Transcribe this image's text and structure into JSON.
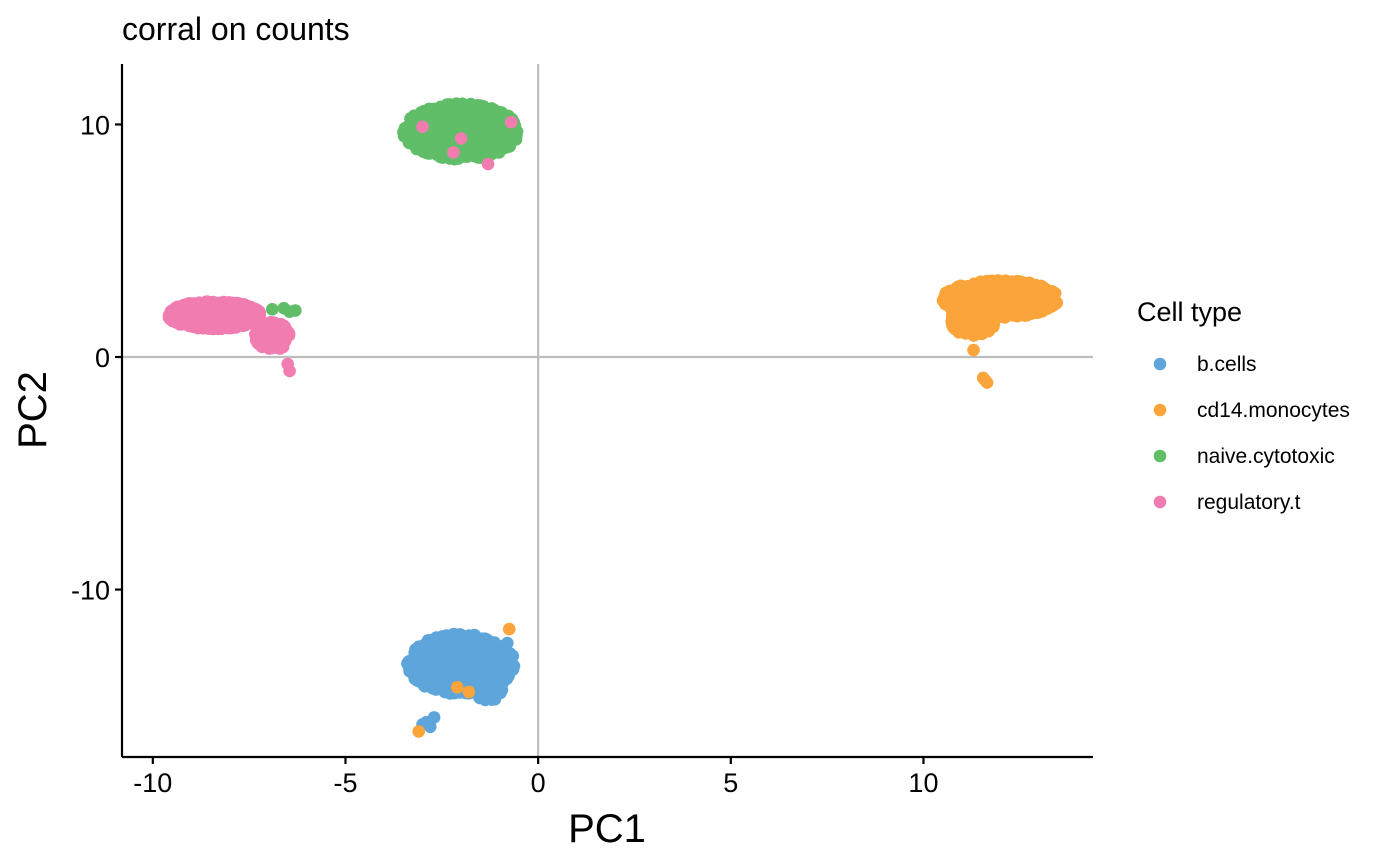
{
  "chart_data": {
    "type": "scatter",
    "title": "corral on counts",
    "xlabel": "PC1",
    "ylabel": "PC2",
    "xlim": [
      -10.8,
      14.4
    ],
    "ylim": [
      -17.2,
      12.6
    ],
    "x_ticks": [
      -10,
      -5,
      0,
      5,
      10
    ],
    "y_ticks": [
      -10,
      0,
      10
    ],
    "x_tick_labels": [
      "-10",
      "-5",
      "0",
      "5",
      "10"
    ],
    "y_tick_labels": [
      "-10",
      "0",
      "10"
    ],
    "reference_lines": {
      "x": 0,
      "y": 0
    },
    "grid": false,
    "legend": {
      "title": "Cell type",
      "placement": "right",
      "entries": [
        "b.cells",
        "cd14.monocytes",
        "naive.cytotoxic",
        "regulatory.t"
      ]
    },
    "series": [
      {
        "name": "b.cells",
        "color": "#5DA5DA",
        "clusters": [
          {
            "cx": -2.0,
            "cy": -13.2,
            "rx": 1.4,
            "ry": 1.3,
            "n": 700
          },
          {
            "cx": -1.3,
            "cy": -14.3,
            "rx": 0.4,
            "ry": 0.5,
            "n": 60
          }
        ],
        "points": [
          [
            -2.9,
            -15.7
          ],
          [
            -2.7,
            -15.5
          ],
          [
            -2.8,
            -15.9
          ],
          [
            -3.0,
            -15.8
          ],
          [
            -0.7,
            -13.3
          ],
          [
            -0.8,
            -12.3
          ]
        ]
      },
      {
        "name": "cd14.monocytes",
        "color": "#FAA43A",
        "clusters": [
          {
            "cx": 12.0,
            "cy": 2.5,
            "rx": 1.5,
            "ry": 0.8,
            "n": 650
          },
          {
            "cx": 11.3,
            "cy": 1.6,
            "rx": 0.6,
            "ry": 0.7,
            "n": 120
          }
        ],
        "points": [
          [
            11.6,
            -1.0
          ],
          [
            11.65,
            -1.1
          ],
          [
            11.55,
            -0.9
          ],
          [
            -3.1,
            -16.1
          ],
          [
            -0.75,
            -11.7
          ],
          [
            -2.1,
            -14.2
          ],
          [
            -1.8,
            -14.4
          ],
          [
            11.3,
            0.3
          ]
        ]
      },
      {
        "name": "naive.cytotoxic",
        "color": "#60BD68",
        "clusters": [
          {
            "cx": -2.0,
            "cy": 9.7,
            "rx": 1.5,
            "ry": 1.2,
            "n": 800
          }
        ],
        "points": [
          [
            -6.3,
            2.0
          ],
          [
            -6.6,
            2.1
          ],
          [
            -6.9,
            2.05
          ],
          [
            -6.45,
            1.95
          ]
        ]
      },
      {
        "name": "regulatory.t",
        "color": "#F17CB0",
        "clusters": [
          {
            "cx": -8.4,
            "cy": 1.8,
            "rx": 1.2,
            "ry": 0.6,
            "n": 700
          },
          {
            "cx": -6.9,
            "cy": 0.9,
            "rx": 0.45,
            "ry": 0.6,
            "n": 150
          }
        ],
        "points": [
          [
            -6.45,
            -0.6
          ],
          [
            -6.5,
            -0.3
          ],
          [
            -3.0,
            9.9
          ],
          [
            -2.0,
            9.4
          ],
          [
            -2.2,
            8.8
          ],
          [
            -1.3,
            8.3
          ],
          [
            -0.7,
            10.1
          ]
        ]
      }
    ]
  }
}
